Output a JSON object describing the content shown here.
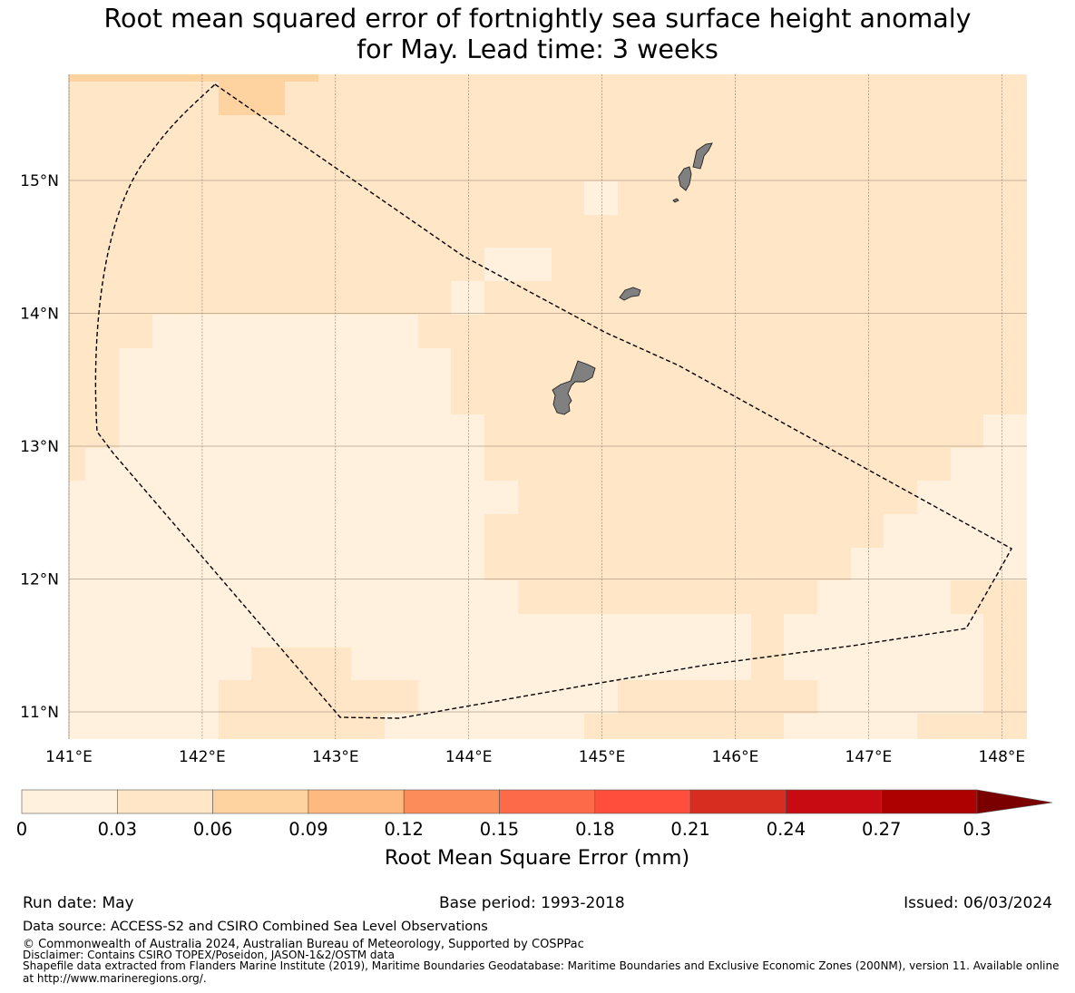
{
  "title": {
    "line1": "Root mean squared error of fortnightly sea surface height anomaly",
    "line2": "for May. Lead time: 3 weeks"
  },
  "map": {
    "lon_range": [
      141.0,
      148.2
    ],
    "lat_range": [
      10.8,
      15.8
    ],
    "lon_ticks": [
      "141°E",
      "142°E",
      "143°E",
      "144°E",
      "145°E",
      "146°E",
      "147°E",
      "148°E"
    ],
    "lat_ticks": [
      "11°N",
      "12°N",
      "13°N",
      "14°N",
      "15°N"
    ],
    "grid": true,
    "land_color": "#808080",
    "boundary_style": "dashed black line (EEZ)"
  },
  "colorbar": {
    "label": "Root Mean Square Error (mm)",
    "tick_labels": [
      "0",
      "0.03",
      "0.06",
      "0.09",
      "0.12",
      "0.15",
      "0.18",
      "0.21",
      "0.24",
      "0.27",
      "0.3"
    ],
    "bins": [
      0,
      0.03,
      0.06,
      0.09,
      0.12,
      0.15,
      0.18,
      0.21,
      0.24,
      0.27,
      0.3
    ],
    "colors": [
      "#fff1dd",
      "#ffe6c6",
      "#fed39f",
      "#fdb97f",
      "#fc8c59",
      "#fd6a4a",
      "#ff4f3c",
      "#d62d20",
      "#c80a13",
      "#ad0000"
    ],
    "extend_color": "#7a0000",
    "extend": "max"
  },
  "footer": {
    "run_date": "Run date: May",
    "base_period": "Base period: 1993-2018",
    "issued": "Issued: 06/03/2024",
    "data_source": "Data source: ACCESS-S2 and CSIRO Combined Sea Level Observations",
    "copyright": "© Commonwealth of Australia 2024, Australian Bureau of Meteorology, Supported by COSPPac",
    "disclaimer": "Disclaimer: Contains CSIRO TOPEX/Poseidon, JASON-1&2/OSTM data",
    "shapefile_1": "Shapefile data extracted from Flanders Marine Institute (2019), Maritime Boundaries Geodatabase: Maritime Boundaries and Exclusive Economic Zones (200NM), version 11. Available online",
    "shapefile_2": "at http://www.marineregions.org/."
  }
}
